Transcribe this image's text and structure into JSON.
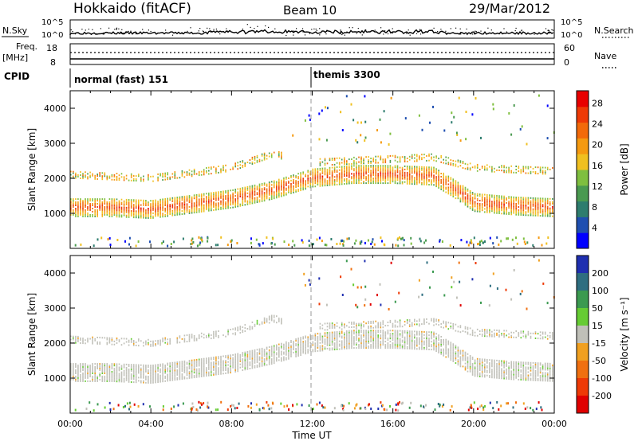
{
  "header": {
    "station": "Hokkaido (fitACF)",
    "beam": "Beam 10",
    "date": "29/Mar/2012"
  },
  "noise_panel": {
    "left_label": "N.Sky",
    "right_label": "N.Search",
    "left_ticks": [
      "10^5",
      "10^0"
    ],
    "right_ticks": [
      "10^5",
      "10^0"
    ]
  },
  "freq_panel": {
    "left_label_1": "Freq.",
    "left_label_2": "[MHz]",
    "left_ticks": [
      "18",
      "8"
    ],
    "right_label": "Nave",
    "right_ticks": [
      "60",
      "0"
    ]
  },
  "cpid": {
    "label": "CPID",
    "modes": [
      {
        "name": "normal (fast) 151",
        "start": "00:00"
      },
      {
        "name": "themis 3300",
        "start": "12:00"
      }
    ]
  },
  "chart_data": [
    {
      "type": "heatmap",
      "parameter": "Power",
      "ylabel": "Slant Range [km]",
      "xlabel": "Time UT",
      "x_ticks": [
        "00:00",
        "04:00",
        "08:00",
        "12:00",
        "16:00",
        "20:00",
        "00:00"
      ],
      "y_ticks": [
        1000,
        2000,
        3000,
        4000
      ],
      "ylim": [
        0,
        4500
      ],
      "colorbar": {
        "label": "Power [dB]",
        "ticks": [
          4,
          8,
          12,
          16,
          20,
          24,
          28
        ],
        "colors": [
          "#0000ff",
          "#1f4fb0",
          "#2e7d6e",
          "#4a9a50",
          "#7fbf3f",
          "#f0c020",
          "#f59a10",
          "#f26a0a",
          "#ee3a06",
          "#e80000"
        ]
      },
      "echo_bands": [
        {
          "x": [
            0,
            2,
            4,
            6,
            8,
            10,
            12,
            14,
            16,
            18,
            19,
            20,
            22,
            24
          ],
          "center_km": [
            1150,
            1150,
            1100,
            1250,
            1400,
            1650,
            2000,
            2100,
            2100,
            2050,
            1700,
            1300,
            1200,
            1150
          ],
          "level_db": 26
        },
        {
          "x": [
            0,
            4,
            8,
            10,
            12,
            18,
            20,
            24
          ],
          "center_km": [
            2100,
            2000,
            2300,
            2700,
            2450,
            2600,
            2300,
            2200
          ],
          "level_db": 14
        }
      ]
    },
    {
      "type": "heatmap",
      "parameter": "Velocity",
      "ylabel": "Slant Range [km]",
      "xlabel": "Time UT",
      "x_ticks": [
        "00:00",
        "04:00",
        "08:00",
        "12:00",
        "16:00",
        "20:00",
        "00:00"
      ],
      "y_ticks": [
        1000,
        2000,
        3000,
        4000
      ],
      "ylim": [
        0,
        4500
      ],
      "colorbar": {
        "label": "Velocity [m s⁻¹]",
        "ticks": [
          200,
          100,
          50,
          15,
          -15,
          -50,
          -100,
          -200
        ],
        "colors": [
          "#1f2fb0",
          "#2e6e80",
          "#3b9a50",
          "#66cc33",
          "#c0c0b8",
          "#f0a020",
          "#f07010",
          "#ee3a06",
          "#e00000"
        ]
      }
    }
  ]
}
